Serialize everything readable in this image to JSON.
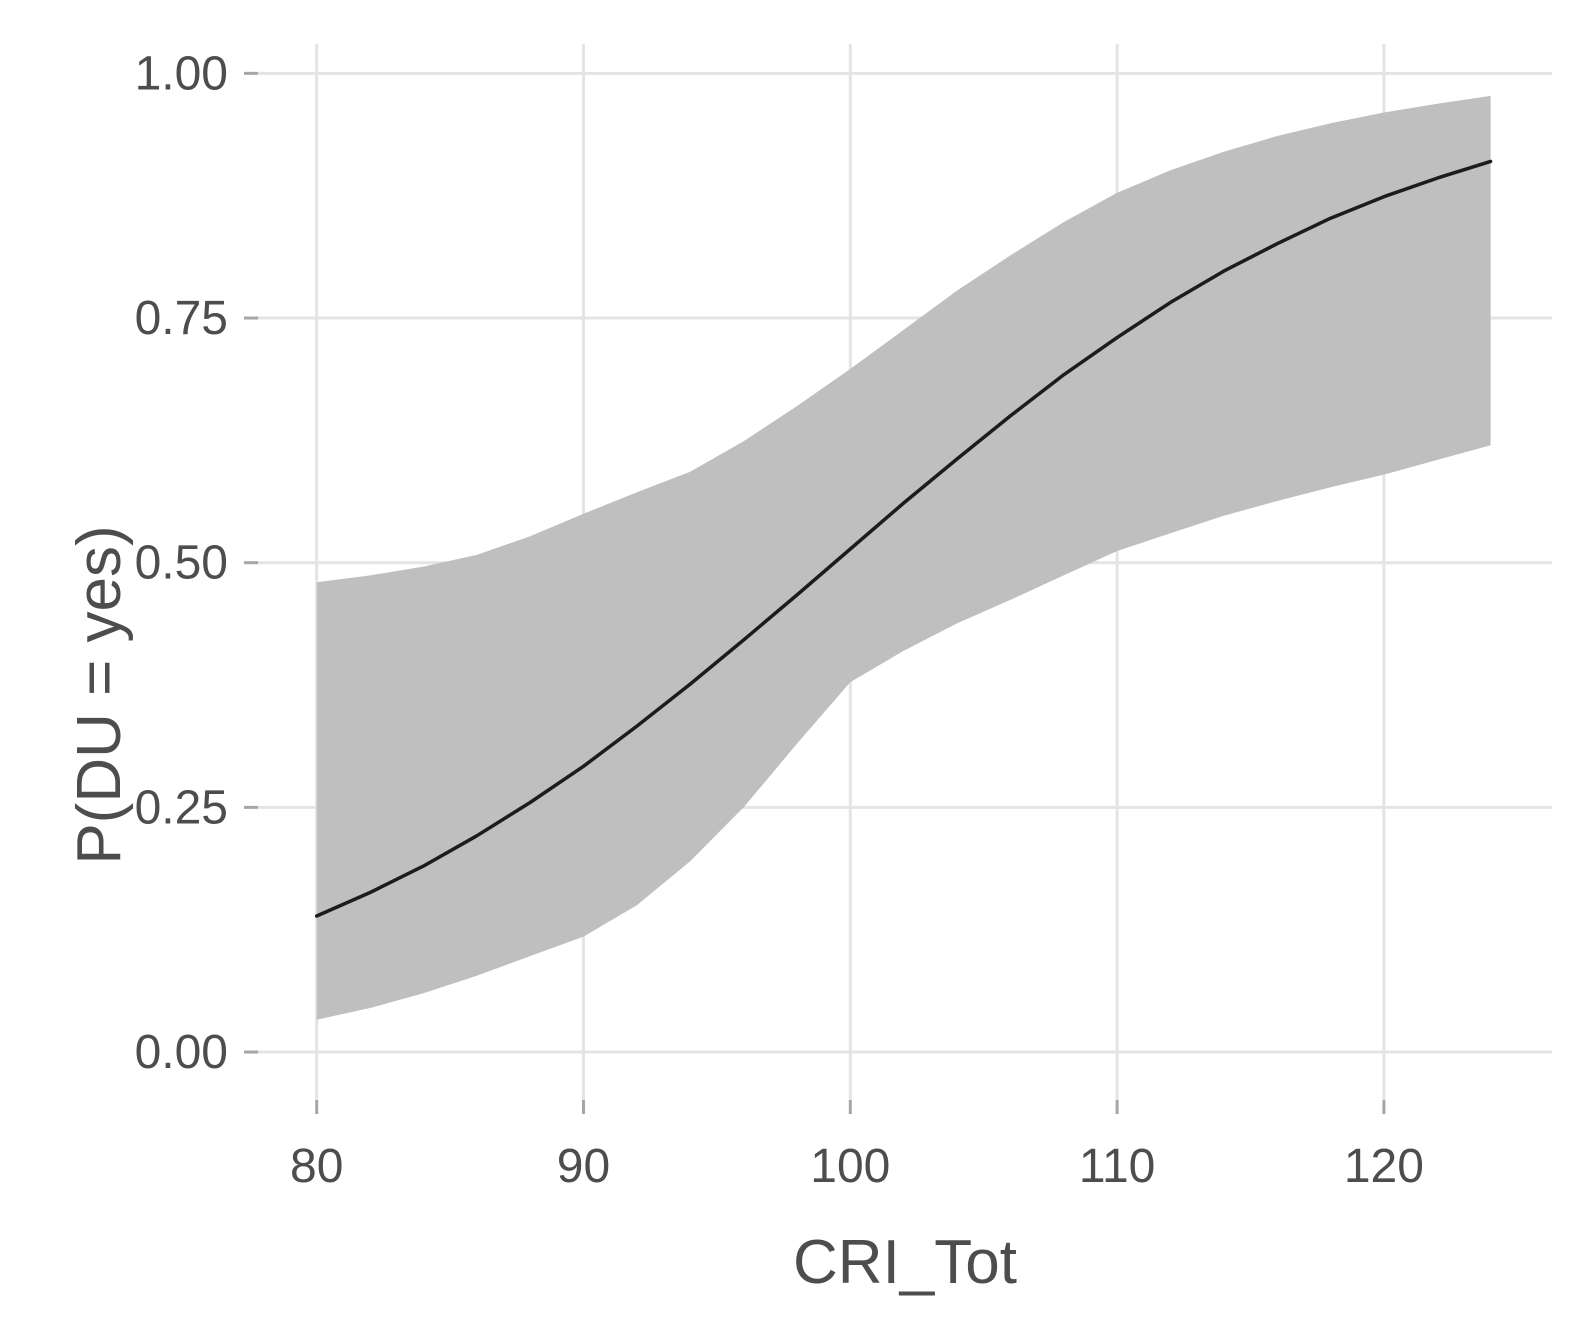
{
  "chart_data": {
    "type": "line",
    "title": "",
    "xlabel": "CRI_Tot",
    "ylabel": "P(DU = yes)",
    "x_tick_labels": [
      "80",
      "90",
      "100",
      "110",
      "120"
    ],
    "x_tick_values": [
      80,
      90,
      100,
      110,
      120
    ],
    "y_tick_labels": [
      "0.00",
      "0.25",
      "0.50",
      "0.75",
      "1.00"
    ],
    "y_tick_values": [
      0,
      0.25,
      0.5,
      0.75,
      1.0
    ],
    "xlim": [
      77.8,
      126.3
    ],
    "ylim": [
      -0.049,
      1.03
    ],
    "grid": true,
    "legend": false,
    "x": [
      80,
      82,
      84,
      86,
      88,
      90,
      92,
      94,
      96,
      98,
      100,
      102,
      104,
      106,
      108,
      110,
      112,
      114,
      116,
      118,
      120,
      122,
      124
    ],
    "series": [
      {
        "name": "fitted_probability",
        "values": [
          0.139,
          0.163,
          0.19,
          0.221,
          0.255,
          0.292,
          0.333,
          0.376,
          0.421,
          0.467,
          0.514,
          0.561,
          0.606,
          0.65,
          0.692,
          0.73,
          0.766,
          0.798,
          0.826,
          0.852,
          0.874,
          0.893,
          0.91
        ]
      },
      {
        "name": "ci_upper",
        "values": [
          0.48,
          0.487,
          0.496,
          0.508,
          0.527,
          0.55,
          0.572,
          0.593,
          0.624,
          0.66,
          0.698,
          0.738,
          0.778,
          0.814,
          0.848,
          0.878,
          0.901,
          0.92,
          0.936,
          0.949,
          0.96,
          0.969,
          0.977
        ]
      },
      {
        "name": "ci_lower",
        "values": [
          0.033,
          0.045,
          0.06,
          0.078,
          0.098,
          0.118,
          0.15,
          0.195,
          0.25,
          0.315,
          0.378,
          0.41,
          0.438,
          0.462,
          0.487,
          0.512,
          0.53,
          0.548,
          0.563,
          0.577,
          0.59,
          0.605,
          0.62
        ]
      }
    ],
    "colors": {
      "band": "#bfbfbf",
      "line": "#1c1c1c",
      "grid": "#e4e4e4",
      "tick": "#a6a6a6",
      "text": "#4d4d4d",
      "background": "#ffffff"
    }
  }
}
